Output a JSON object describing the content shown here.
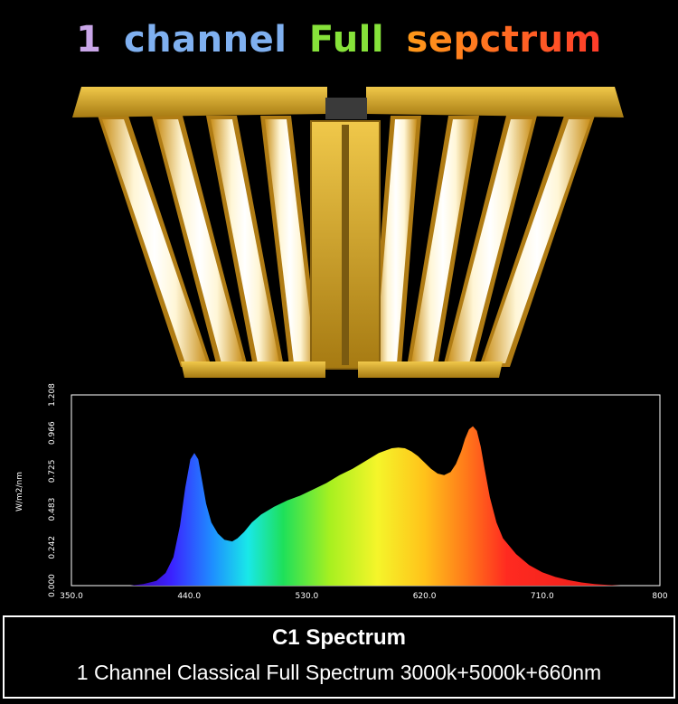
{
  "headline": {
    "words": [
      {
        "text": "1",
        "color": "#c9a6e8"
      },
      {
        "text": "channel",
        "color": "#7fb0f0"
      },
      {
        "text": "Full",
        "color": "#86e23a"
      },
      {
        "text": "sepctrum",
        "color": "#ff8a1a"
      }
    ],
    "sepctrum_gradient": [
      "#ff9a1a",
      "#ff3b2a"
    ]
  },
  "fixture": {
    "bars_per_side": 4,
    "frame_color": "#d8a928",
    "led_color": "#fff3c4"
  },
  "chart_data": {
    "type": "area",
    "title": "",
    "xlabel": "",
    "ylabel": "W/m2/nm",
    "xlim": [
      350,
      800
    ],
    "ylim": [
      0,
      1.208
    ],
    "x_ticks": [
      "350.0",
      "440.0",
      "530.0",
      "620.0",
      "710.0",
      "800"
    ],
    "y_ticks": [
      "0.000",
      "0.242",
      "0.483",
      "0.725",
      "0.966",
      "1.208"
    ],
    "grid": false,
    "fill": "spectral rainbow by wavelength",
    "series": [
      {
        "x": [
          395,
          405,
          415,
          422,
          428,
          433,
          437,
          441,
          444,
          447,
          450,
          453,
          457,
          462,
          467,
          473,
          477,
          482,
          488,
          495,
          505,
          515,
          525,
          535,
          545,
          555,
          565,
          575,
          585,
          595,
          600,
          605,
          610,
          615,
          620,
          625,
          630,
          635,
          640,
          644,
          648,
          651,
          654,
          657,
          660,
          663,
          666,
          670,
          675,
          680,
          690,
          700,
          710,
          720,
          730,
          740,
          750,
          760,
          770
        ],
        "y": [
          0.0,
          0.01,
          0.03,
          0.08,
          0.18,
          0.38,
          0.62,
          0.8,
          0.84,
          0.8,
          0.66,
          0.52,
          0.4,
          0.33,
          0.29,
          0.28,
          0.3,
          0.34,
          0.4,
          0.45,
          0.5,
          0.54,
          0.57,
          0.61,
          0.65,
          0.7,
          0.74,
          0.79,
          0.84,
          0.87,
          0.875,
          0.87,
          0.85,
          0.82,
          0.78,
          0.74,
          0.71,
          0.7,
          0.72,
          0.77,
          0.85,
          0.93,
          0.99,
          1.01,
          0.98,
          0.88,
          0.74,
          0.56,
          0.4,
          0.3,
          0.2,
          0.13,
          0.085,
          0.055,
          0.035,
          0.02,
          0.01,
          0.004,
          0.0
        ]
      }
    ]
  },
  "caption": {
    "title": "C1 Spectrum",
    "subtitle": "1 Channel Classical Full Spectrum  3000k+5000k+660nm"
  }
}
